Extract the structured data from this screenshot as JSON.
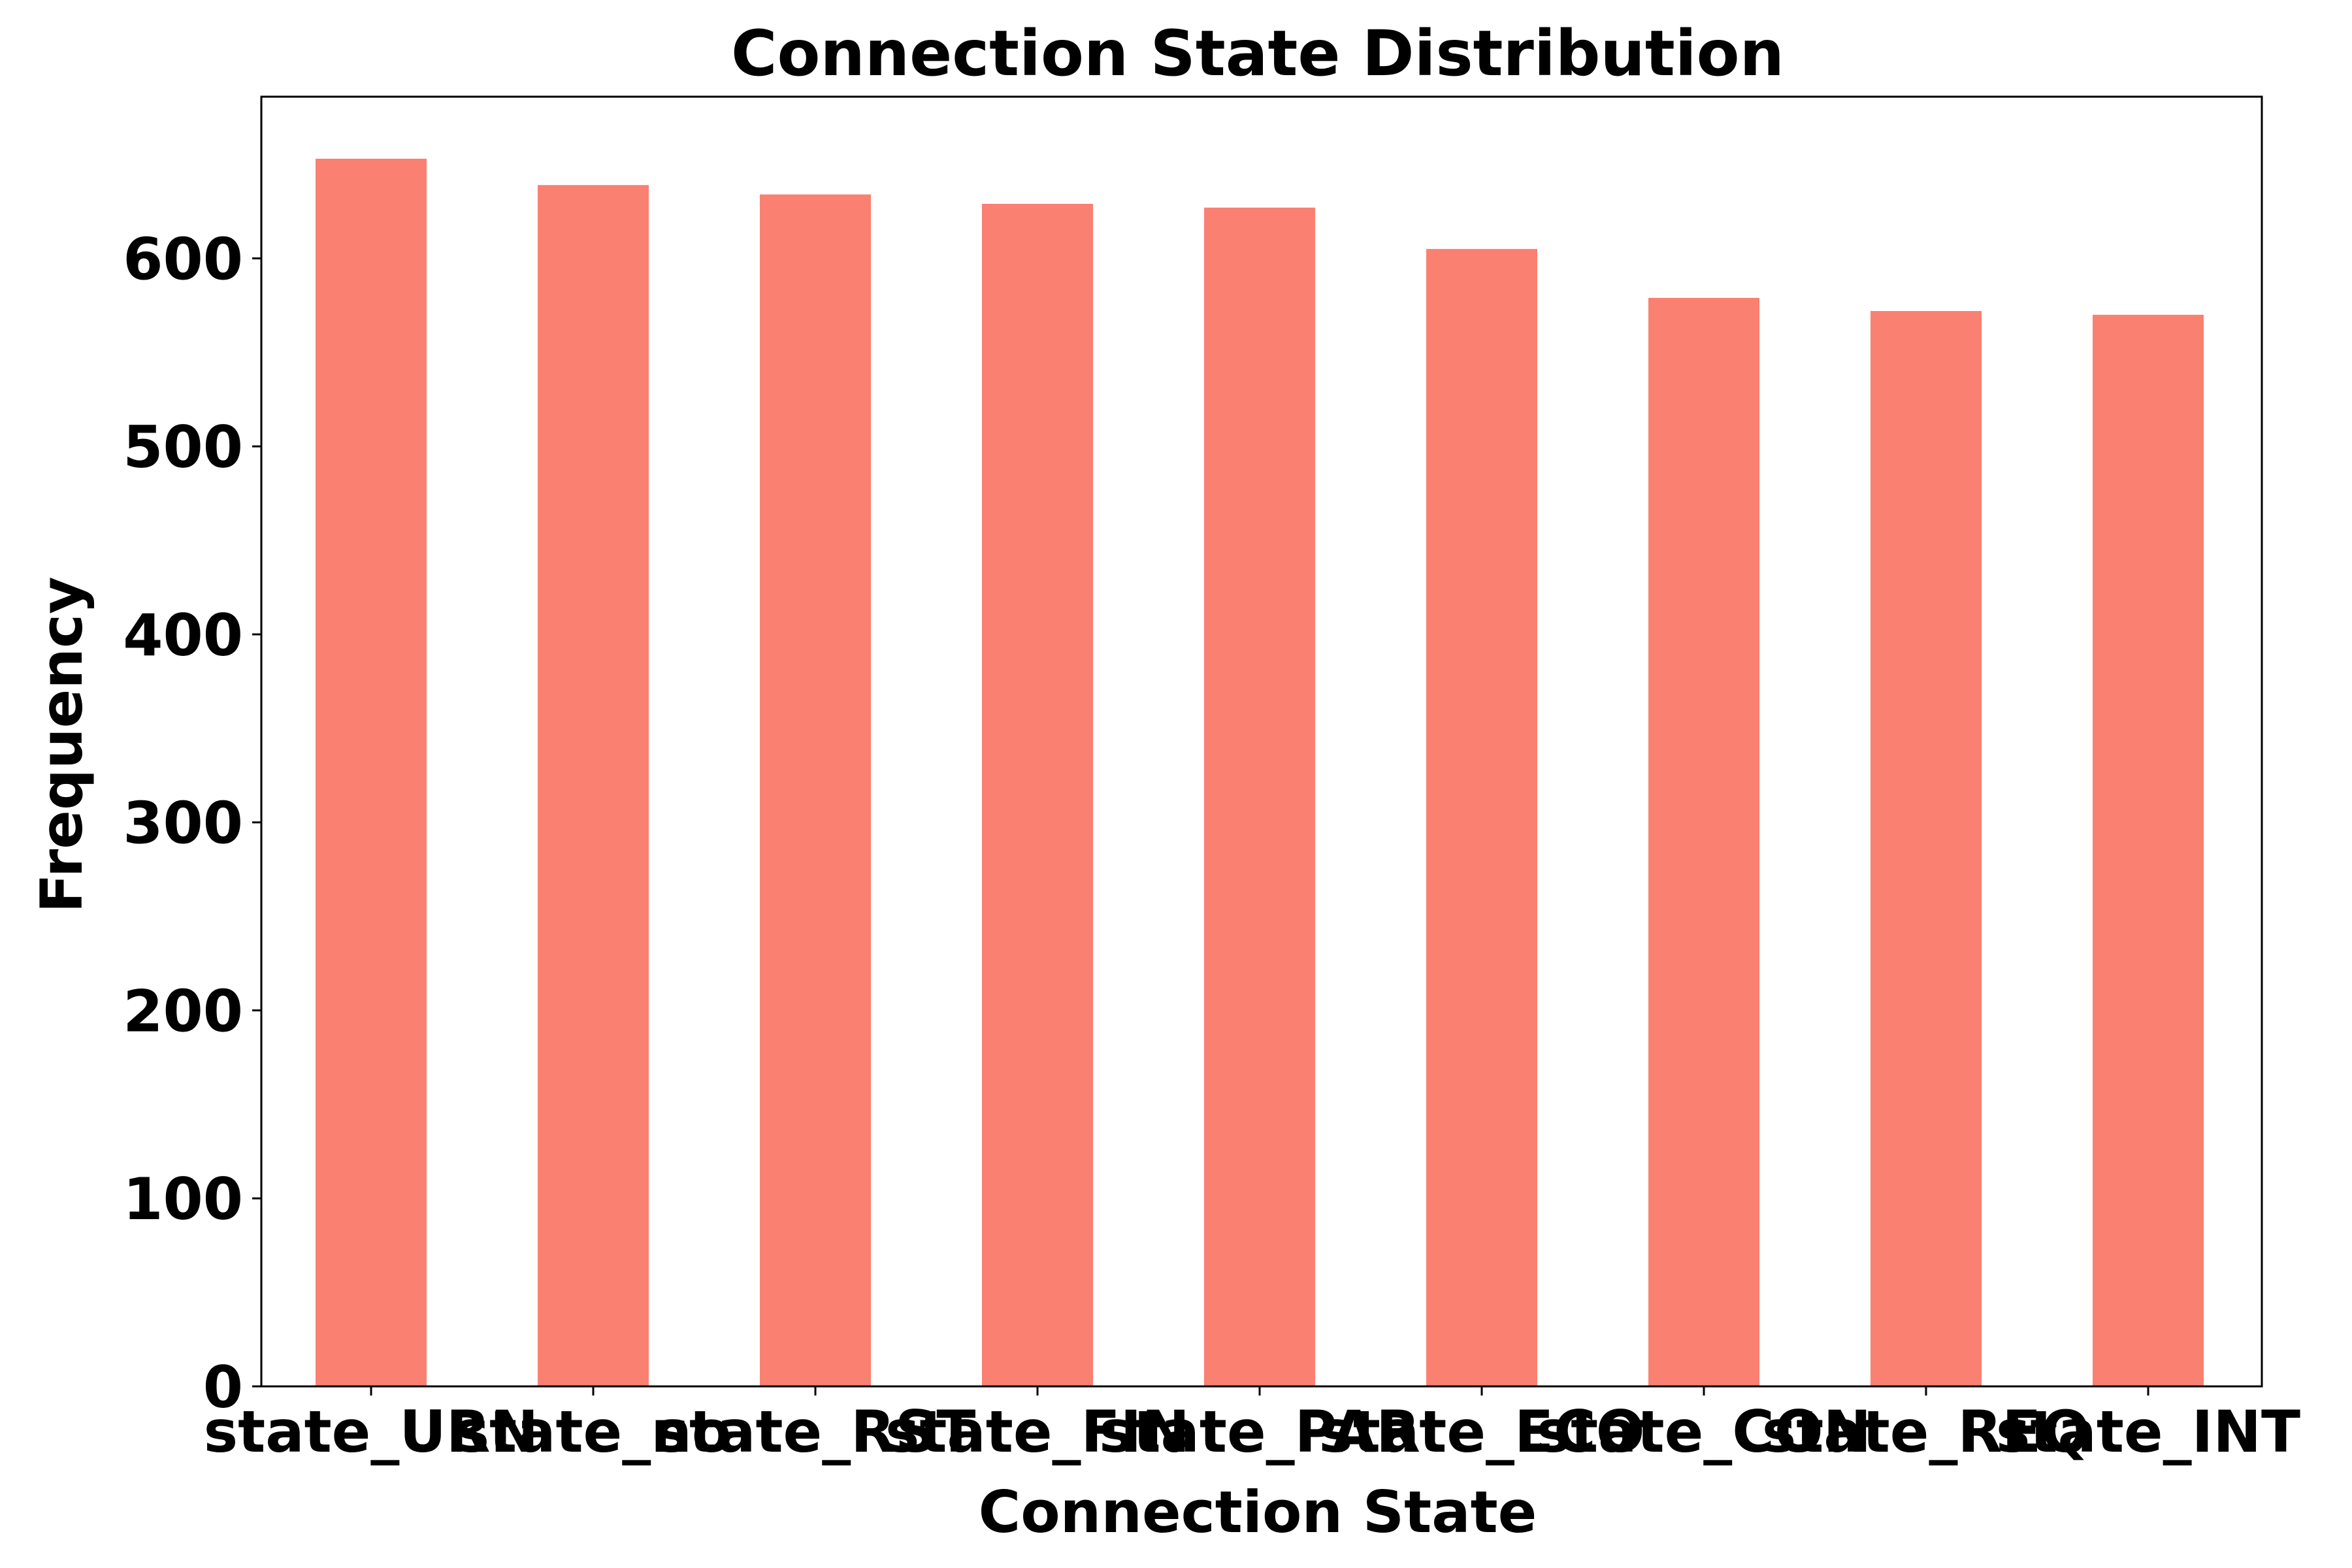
{
  "chart_data": {
    "type": "bar",
    "title": "Connection State Distribution",
    "xlabel": "Connection State",
    "ylabel": "Frequency",
    "categories": [
      "state_URN",
      "state_no",
      "state_RST",
      "state_FIN",
      "state_PAR",
      "state_ECO",
      "state_CON",
      "state_REQ",
      "state_INT"
    ],
    "values": [
      653,
      639,
      634,
      629,
      627,
      605,
      579,
      572,
      570
    ],
    "ylim": [
      0,
      686
    ],
    "yticks": [
      0,
      100,
      200,
      300,
      400,
      500,
      600
    ],
    "bar_color": "#fa8072",
    "grid": false
  }
}
